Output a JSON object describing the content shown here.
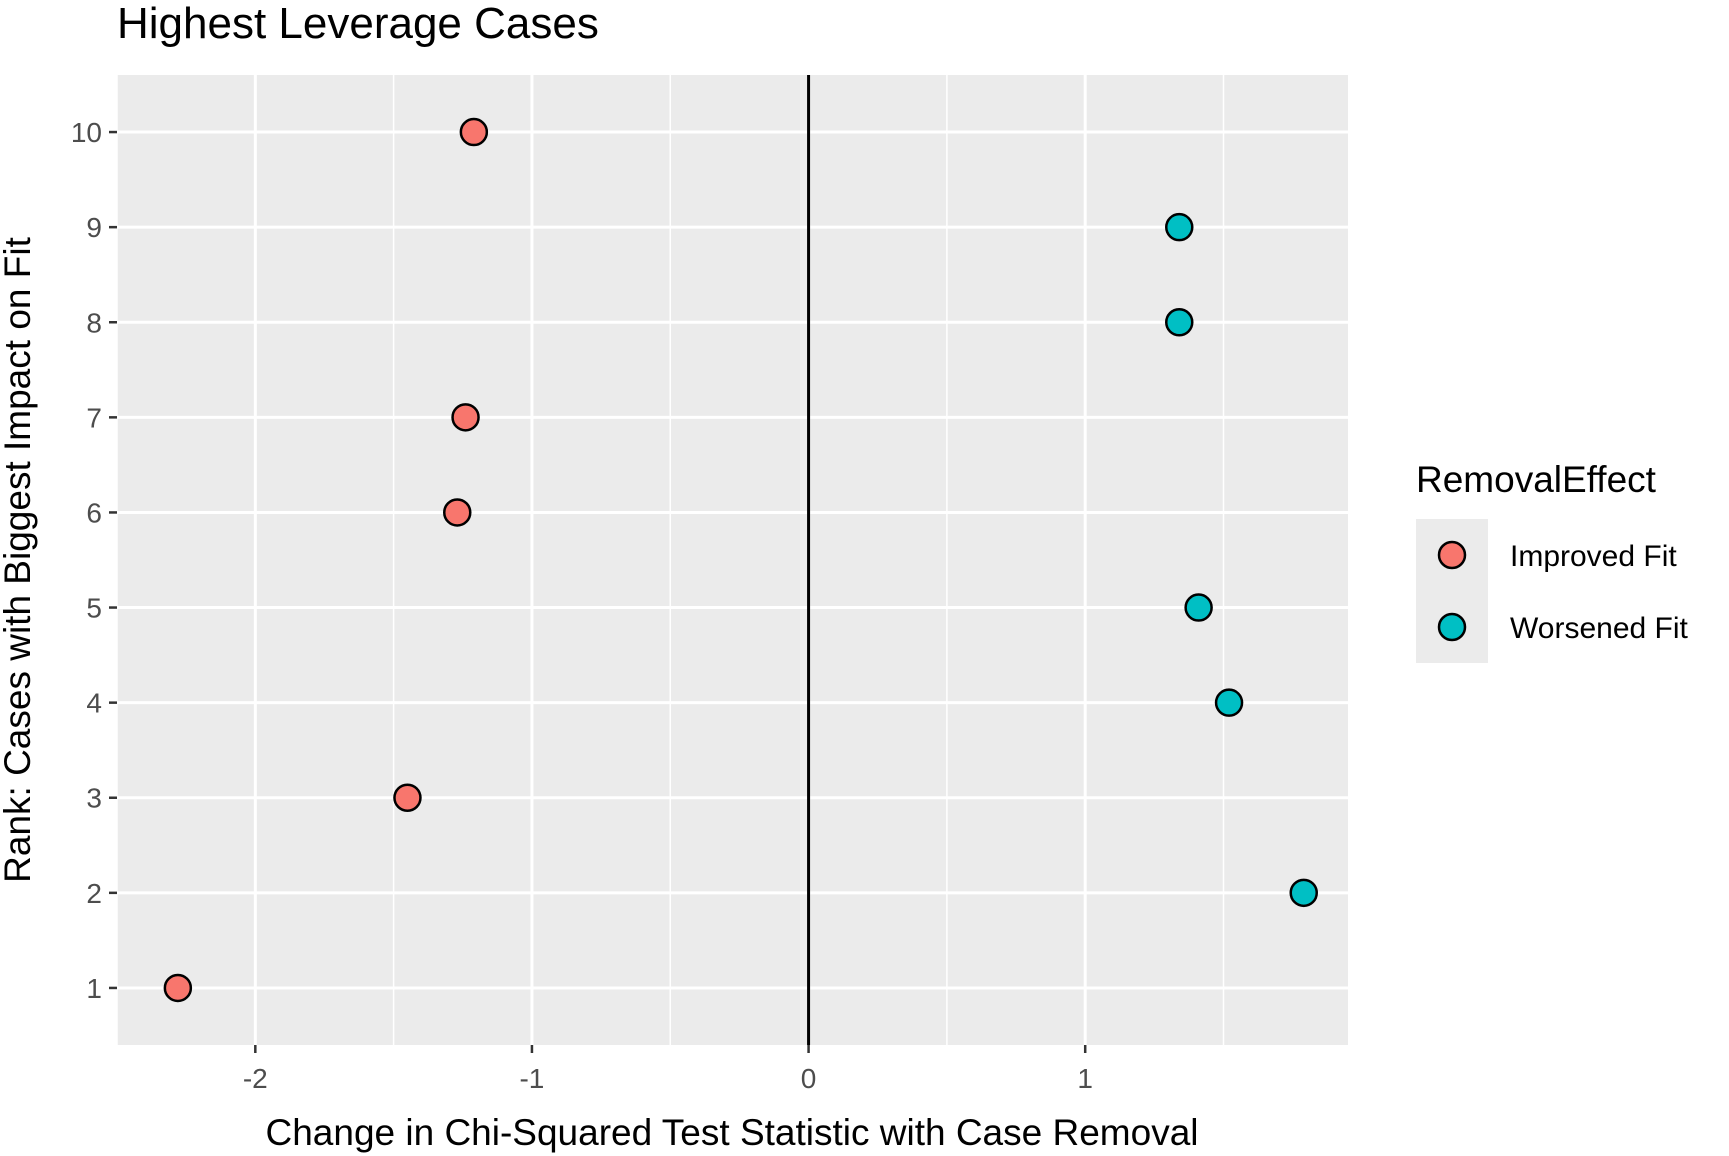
{
  "chart_data": {
    "type": "scatter",
    "title": "Highest Leverage Cases",
    "xlabel": "Change in Chi-Squared Test Statistic with Case Removal",
    "ylabel": "Rank: Cases with Biggest Impact on Fit",
    "xlim": [
      -2.5,
      1.95
    ],
    "ylim": [
      0.4,
      10.6
    ],
    "x_ticks": [
      -2,
      -1,
      0,
      1
    ],
    "x_tick_labels": [
      "-2",
      "-1",
      "0",
      "1"
    ],
    "y_ticks": [
      1,
      2,
      3,
      4,
      5,
      6,
      7,
      8,
      9,
      10
    ],
    "y_tick_labels": [
      "1",
      "2",
      "3",
      "4",
      "5",
      "6",
      "7",
      "8",
      "9",
      "10"
    ],
    "vline_x": 0,
    "grid": true,
    "legend_position": "right",
    "legend_title": "RemovalEffect",
    "series": [
      {
        "name": "Improved Fit",
        "color": "#F8766D",
        "points": [
          {
            "x": -2.28,
            "y": 1
          },
          {
            "x": -1.45,
            "y": 3
          },
          {
            "x": -1.27,
            "y": 6
          },
          {
            "x": -1.24,
            "y": 7
          },
          {
            "x": -1.21,
            "y": 10
          }
        ]
      },
      {
        "name": "Worsened Fit",
        "color": "#00BFC4",
        "points": [
          {
            "x": 1.79,
            "y": 2
          },
          {
            "x": 1.52,
            "y": 4
          },
          {
            "x": 1.41,
            "y": 5
          },
          {
            "x": 1.34,
            "y": 8
          },
          {
            "x": 1.34,
            "y": 9
          }
        ]
      }
    ]
  }
}
